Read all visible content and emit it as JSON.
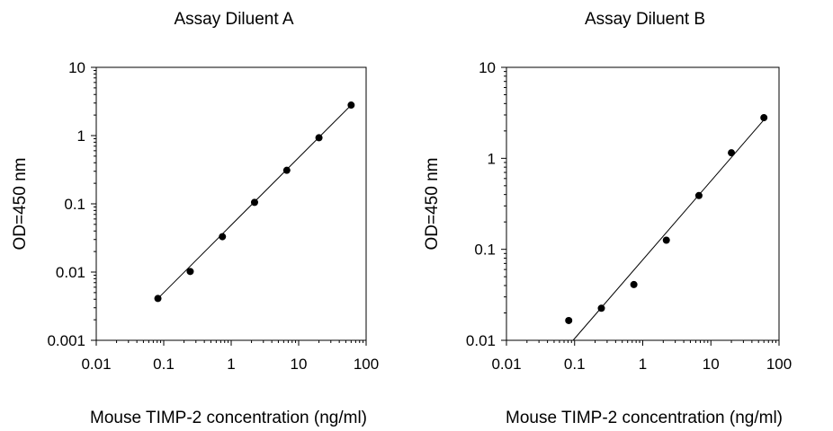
{
  "chart_data": [
    {
      "type": "scatter",
      "title": "Assay Diluent A",
      "xlabel": "Mouse TIMP-2 concentration (ng/ml)",
      "ylabel": "OD=450 nm",
      "xscale": "log",
      "yscale": "log",
      "xlim": [
        0.01,
        100
      ],
      "ylim": [
        0.001,
        10
      ],
      "xticks": [
        "0.01",
        "0.1",
        "1",
        "10",
        "100"
      ],
      "yticks": [
        "0.001",
        "0.01",
        "0.1",
        "1",
        "10"
      ],
      "grid": false,
      "marker_color": "#000000",
      "series": [
        {
          "x": [
            0.082,
            0.247,
            0.741,
            2.22,
            6.67,
            20,
            60
          ],
          "y": [
            0.0041,
            0.0102,
            0.033,
            0.105,
            0.31,
            0.93,
            2.8
          ]
        }
      ],
      "fit_line": {
        "x": [
          0.082,
          60
        ],
        "y": [
          0.0041,
          2.8
        ]
      }
    },
    {
      "type": "scatter",
      "title": "Assay Diluent B",
      "xlabel": "Mouse TIMP-2 concentration (ng/ml)",
      "ylabel": "OD=450 nm",
      "xscale": "log",
      "yscale": "log",
      "xlim": [
        0.01,
        100
      ],
      "ylim": [
        0.01,
        10
      ],
      "xticks": [
        "0.01",
        "0.1",
        "1",
        "10",
        "100"
      ],
      "yticks": [
        "0.01",
        "0.1",
        "1",
        "10"
      ],
      "grid": false,
      "marker_color": "#000000",
      "series": [
        {
          "x": [
            0.082,
            0.247,
            0.741,
            2.22,
            6.67,
            20,
            60
          ],
          "y": [
            0.0165,
            0.0225,
            0.041,
            0.126,
            0.39,
            1.15,
            2.8
          ]
        }
      ],
      "fit_line": {
        "x": [
          0.095,
          60
        ],
        "y": [
          0.01,
          2.65
        ]
      }
    }
  ]
}
